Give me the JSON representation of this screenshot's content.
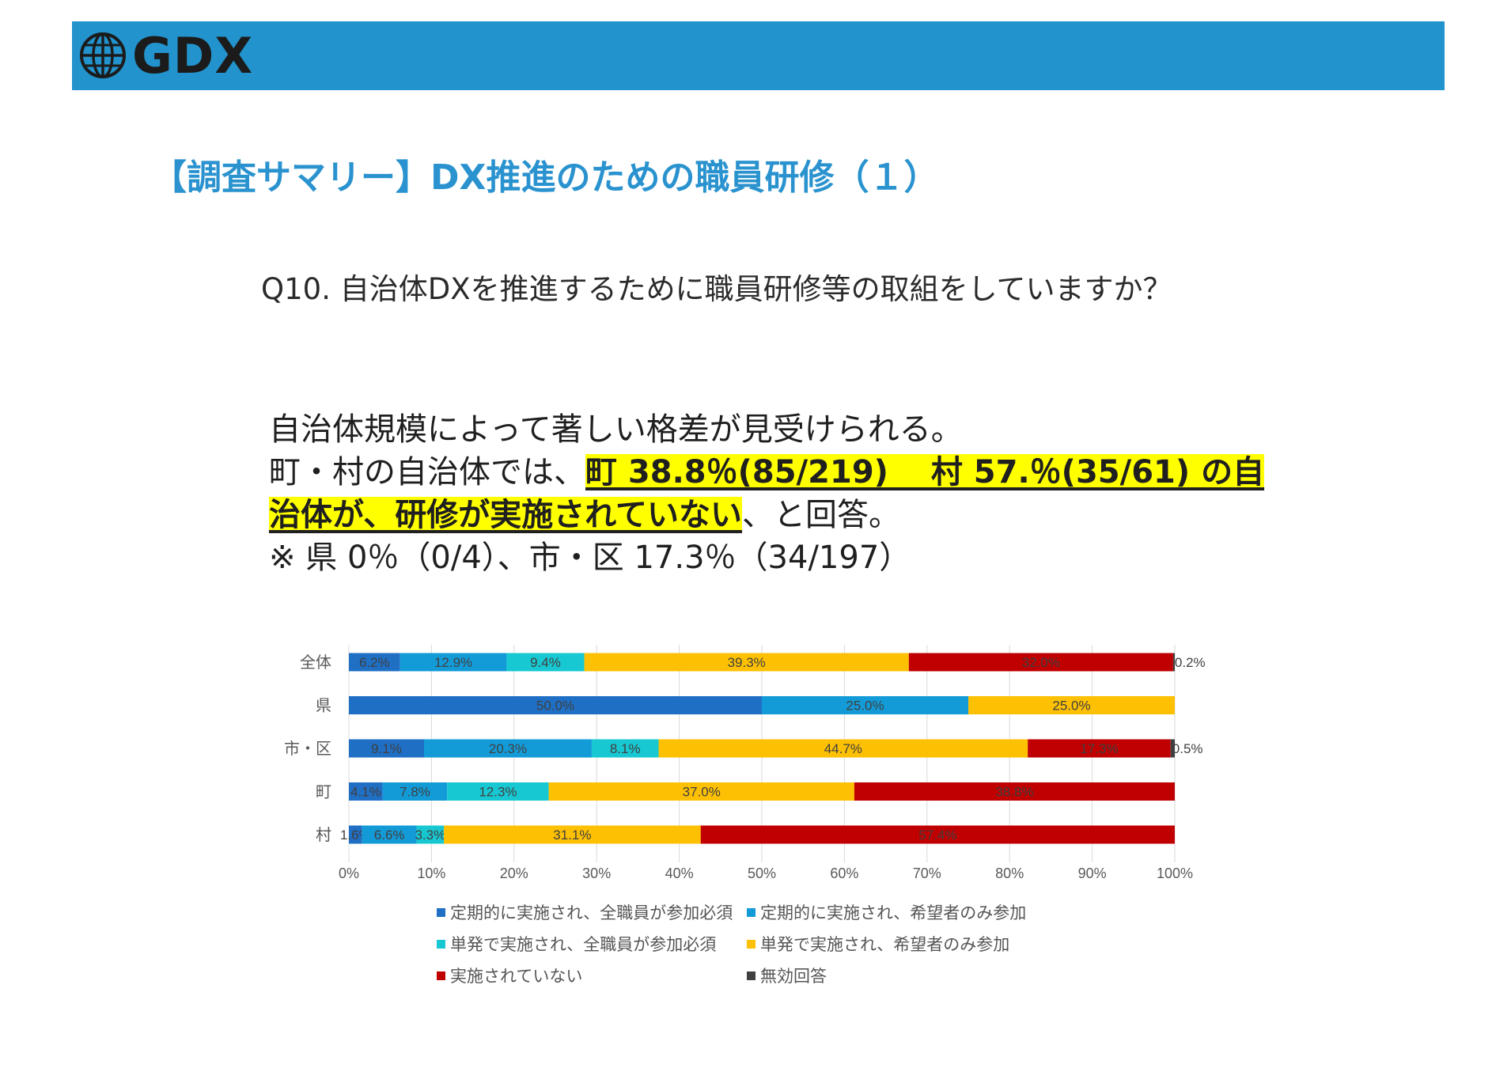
{
  "header": {
    "logo_text": "GDX",
    "logo_icon": "globe-icon",
    "bar_color": "#2293cd"
  },
  "title": "【調査サマリー】DX推進のための職員研修（１）",
  "question": "Q10. 自治体DXを推進するために職員研修等の取組をしていますか？",
  "summary": {
    "line1": "自治体規模によって著しい格差が見受けられる。",
    "line2_pre": "町・村の自治体では、",
    "line2_hl": "町 38.8％(85/219)　 村 57.％(35/61) の自",
    "line3_hl": "治体が、研修が実施されていない",
    "line3_post": "、と回答。",
    "line4": "※ 県 0％（0/4）、市・区 17.3％（34/197）"
  },
  "chart_data": {
    "type": "bar",
    "orientation": "horizontal",
    "stacked": true,
    "categories": [
      "全体",
      "県",
      "市・区",
      "町",
      "村"
    ],
    "xlim": [
      0,
      100
    ],
    "x_ticks": [
      "0%",
      "10%",
      "20%",
      "30%",
      "40%",
      "50%",
      "60%",
      "70%",
      "80%",
      "90%",
      "100%"
    ],
    "grid": true,
    "legend_position": "bottom",
    "series": [
      {
        "name": "定期的に実施され、全職員が参加必須",
        "color": "#1f6fc5",
        "values": [
          6.2,
          50.0,
          9.1,
          4.1,
          1.6
        ],
        "labels": [
          "6.2%",
          "50.0%",
          "9.1%",
          "4.1%",
          "1.6%"
        ]
      },
      {
        "name": "定期的に実施され、希望者のみ参加",
        "color": "#139bd8",
        "values": [
          12.9,
          25.0,
          20.3,
          7.8,
          6.6
        ],
        "labels": [
          "12.9%",
          "25.0%",
          "20.3%",
          "7.8%",
          "6.6%"
        ]
      },
      {
        "name": "単発で実施され、全職員が参加必須",
        "color": "#17c8d2",
        "values": [
          9.4,
          0,
          8.1,
          12.3,
          3.3
        ],
        "labels": [
          "9.4%",
          "",
          "8.1%",
          "12.3%",
          "3.3%"
        ]
      },
      {
        "name": "単発で実施され、希望者のみ参加",
        "color": "#fdc003",
        "values": [
          39.3,
          25.0,
          44.7,
          37.0,
          31.1
        ],
        "labels": [
          "39.3%",
          "25.0%",
          "44.7%",
          "37.0%",
          "31.1%"
        ]
      },
      {
        "name": "実施されていない",
        "color": "#c00000",
        "values": [
          32.0,
          0,
          17.3,
          38.8,
          57.4
        ],
        "labels": [
          "32.0%",
          "",
          "17.3%",
          "38.8%",
          "57.4%"
        ]
      },
      {
        "name": "無効回答",
        "color": "#404040",
        "values": [
          0.2,
          0,
          0.5,
          0,
          0
        ],
        "labels": [
          "0.2%",
          "",
          "0.5%",
          "",
          ""
        ]
      }
    ]
  }
}
